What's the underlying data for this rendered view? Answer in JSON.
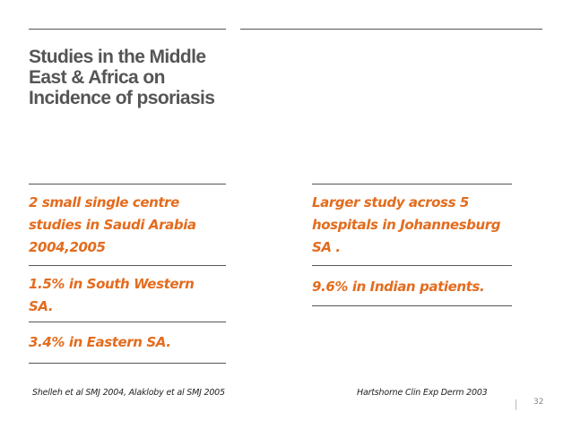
{
  "slide": {
    "title": "Studies in the Middle East & Africa on Incidence of psoriasis",
    "left": {
      "item1": "2 small single centre studies in Saudi Arabia 2004,2005",
      "item2": "1.5% in South Western SA.",
      "item3": "3.4% in Eastern SA.",
      "citation": "Shelleh et al SMJ 2004, Alakloby et al SMJ 2005"
    },
    "right": {
      "item1": "Larger study across 5 hospitals in Johannesburg SA .",
      "item2": "9.6% in Indian patients.",
      "citation": "Hartshorne Clin Exp Derm 2003"
    },
    "page_number": "32"
  },
  "colors": {
    "accent": "#e36c1e",
    "title": "#555555",
    "rule": "#555555"
  }
}
